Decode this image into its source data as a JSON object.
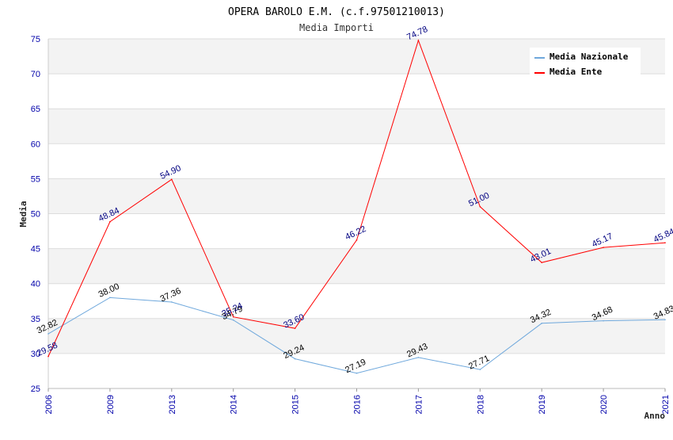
{
  "chart_data": {
    "type": "line",
    "title": "OPERA BAROLO E.M. (c.f.97501210013)",
    "subtitle": "Media Importi",
    "xlabel": "Anno",
    "ylabel": "Media",
    "categories": [
      "2006",
      "2009",
      "2013",
      "2014",
      "2015",
      "2016",
      "2017",
      "2018",
      "2019",
      "2020",
      "2021"
    ],
    "ylim": [
      25,
      75
    ],
    "yticks": [
      25,
      30,
      35,
      40,
      45,
      50,
      55,
      60,
      65,
      70,
      75
    ],
    "ytick_labels": [
      "25",
      "30",
      "35",
      "40",
      "45",
      "50",
      "55",
      "60",
      "65",
      "70",
      "75"
    ],
    "grid": true,
    "legend_position": "top-right",
    "series": [
      {
        "name": "Media Nazionale",
        "color": "#6fa8dc",
        "label_color": "#000000",
        "values": [
          32.82,
          38.0,
          37.36,
          34.79,
          29.24,
          27.19,
          29.43,
          27.71,
          34.32,
          34.68,
          34.83
        ],
        "labels": [
          "32.82",
          "38.00",
          "37.36",
          "34.79",
          "29.24",
          "27.19",
          "29.43",
          "27.71",
          "34.32",
          "34.68",
          "34.83"
        ]
      },
      {
        "name": "Media Ente",
        "color": "#ff0000",
        "label_color": "#000080",
        "values": [
          29.58,
          48.84,
          54.9,
          35.24,
          33.6,
          46.22,
          74.78,
          51.0,
          43.01,
          45.17,
          45.84
        ],
        "labels": [
          "29.58",
          "48.84",
          "54.90",
          "35.24",
          "33.60",
          "46.22",
          "74.78",
          "51.00",
          "43.01",
          "45.17",
          "45.84"
        ]
      }
    ]
  }
}
